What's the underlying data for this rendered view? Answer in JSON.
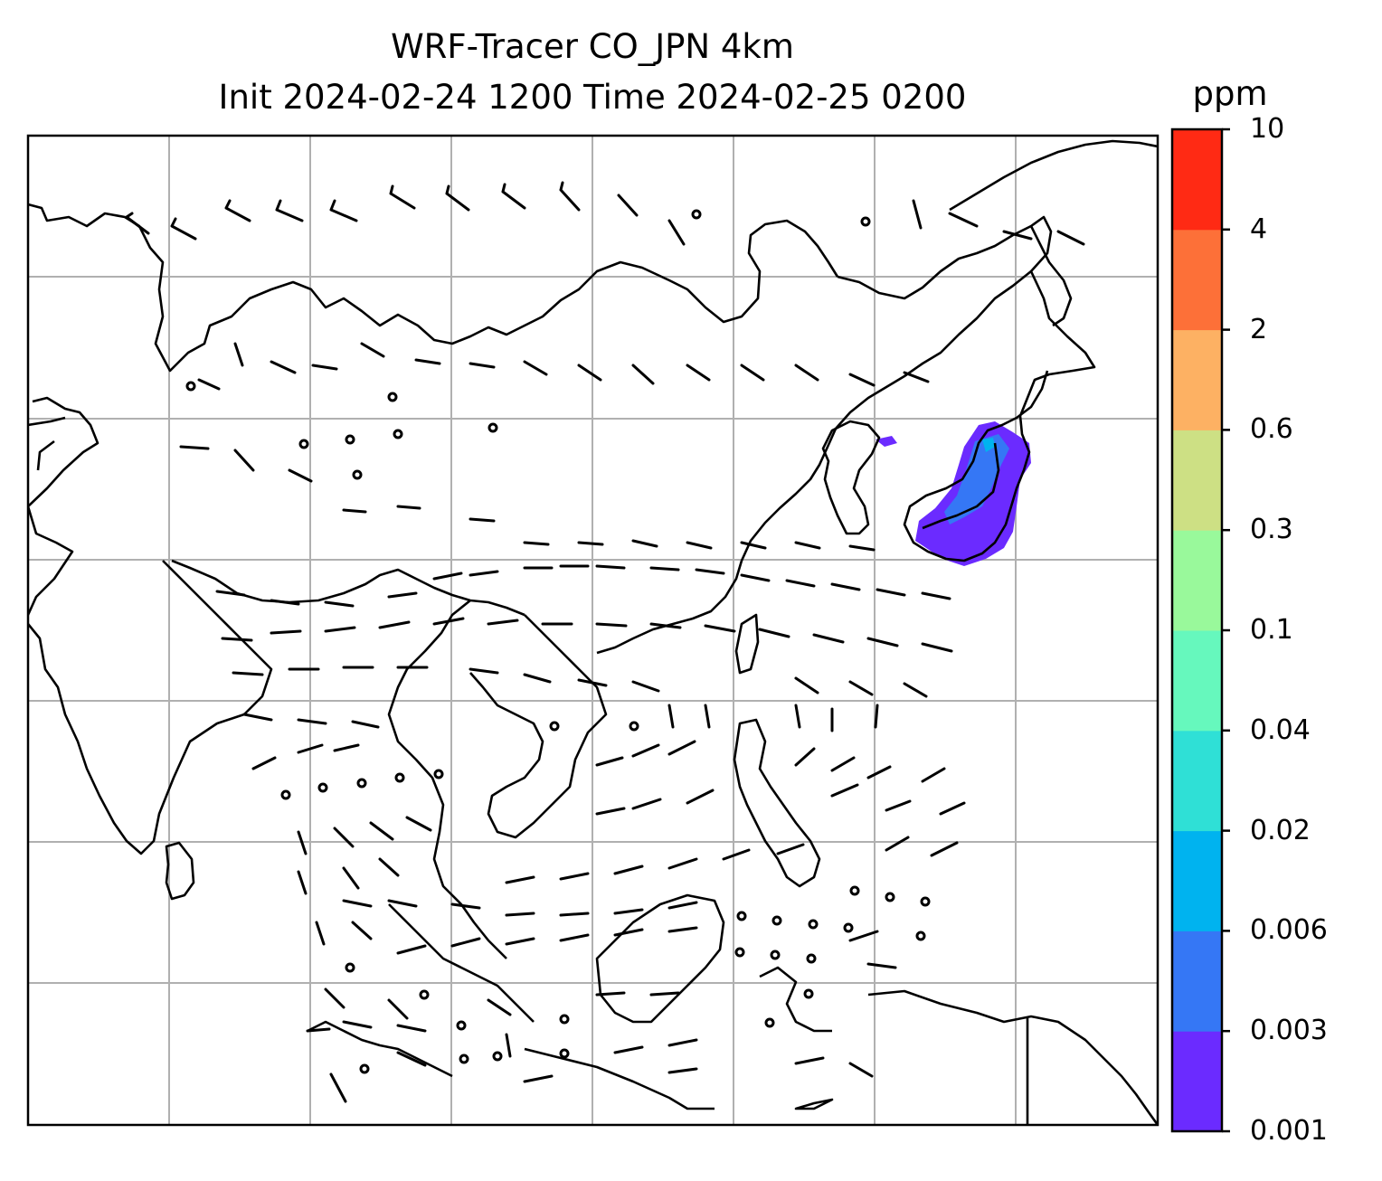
{
  "title": {
    "line1": "WRF-Tracer CO_JPN 4km",
    "line2": "Init 2024-02-24 1200 Time 2024-02-25 0200"
  },
  "colorbar": {
    "unit": "ppm",
    "levels": [
      "0.001",
      "0.003",
      "0.006",
      "0.02",
      "0.04",
      "0.1",
      "0.3",
      "0.6",
      "2",
      "4",
      "10"
    ],
    "colors": [
      "#6b2bff",
      "#3577f5",
      "#00b3ef",
      "#2fe0d6",
      "#66f8bd",
      "#99f99b",
      "#cde084",
      "#fdb163",
      "#fd7038",
      "#ff2a14"
    ]
  },
  "map": {
    "region": "East and Southeast Asia",
    "features": [
      "coastlines",
      "country borders",
      "gridlines",
      "wind barbs",
      "CO tracer plume near Japan"
    ],
    "grid": true
  }
}
